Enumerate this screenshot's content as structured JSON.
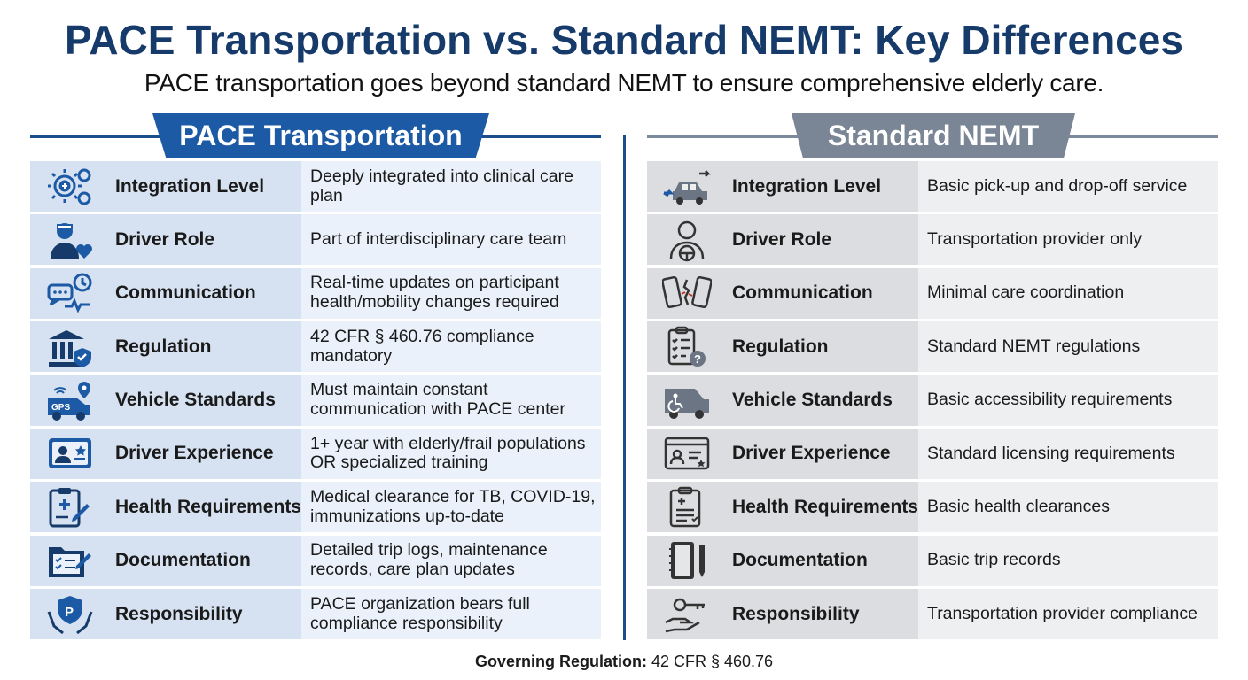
{
  "title": "PACE Transportation vs. Standard NEMT: Key Differences",
  "subtitle": "PACE transportation goes beyond standard NEMT to ensure comprehensive elderly care.",
  "colors": {
    "pace_blue": "#1d5aa5",
    "navy": "#163a6a",
    "nemt_gray": "#7a8696"
  },
  "pace": {
    "heading": "PACE Transportation",
    "rows": [
      {
        "icon": "gears-medical-icon",
        "label": "Integration Level",
        "desc": "Deeply integrated into clinical care plan"
      },
      {
        "icon": "nurse-heart-icon",
        "label": "Driver Role",
        "desc": "Part of interdisciplinary care team"
      },
      {
        "icon": "chat-clock-heartbeat-icon",
        "label": "Communication",
        "desc": "Real-time updates on participant health/mobility changes required"
      },
      {
        "icon": "government-shield-icon",
        "label": "Regulation",
        "desc": "42 CFR § 460.76 compliance mandatory"
      },
      {
        "icon": "gps-van-icon",
        "label": "Vehicle Standards",
        "desc": "Must maintain constant communication with PACE center"
      },
      {
        "icon": "id-badge-star-icon",
        "label": "Driver Experience",
        "desc": "1+ year with elderly/frail populations OR specialized training"
      },
      {
        "icon": "medical-clipboard-syringe-icon",
        "label": "Health Requirements",
        "desc": "Medical clearance for TB, COVID-19, immunizations up-to-date"
      },
      {
        "icon": "folder-checklist-pen-icon",
        "label": "Documentation",
        "desc": "Detailed trip logs, maintenance records, care plan updates"
      },
      {
        "icon": "hands-shield-icon",
        "label": "Responsibility",
        "desc": "PACE organization bears full compliance responsibility"
      }
    ],
    "gps_text": "GPS",
    "p_text": "P"
  },
  "nemt": {
    "heading": "Standard NEMT",
    "rows": [
      {
        "icon": "car-arrows-icon",
        "label": "Integration Level",
        "desc": "Basic pick-up and drop-off service"
      },
      {
        "icon": "driver-steering-icon",
        "label": "Driver Role",
        "desc": "Transportation provider only"
      },
      {
        "icon": "broken-phones-icon",
        "label": "Communication",
        "desc": "Minimal care coordination"
      },
      {
        "icon": "checklist-question-icon",
        "label": "Regulation",
        "desc": "Standard NEMT regulations"
      },
      {
        "icon": "accessible-van-icon",
        "label": "Vehicle Standards",
        "desc": "Basic accessibility requirements"
      },
      {
        "icon": "license-card-icon",
        "label": "Driver Experience",
        "desc": "Standard licensing requirements"
      },
      {
        "icon": "medical-form-icon",
        "label": "Health Requirements",
        "desc": "Basic health clearances"
      },
      {
        "icon": "notebook-pen-icon",
        "label": "Documentation",
        "desc": "Basic trip records"
      },
      {
        "icon": "hand-key-icon",
        "label": "Responsibility",
        "desc": "Transportation provider compliance"
      }
    ]
  },
  "footer": {
    "label": "Governing Regulation:",
    "value": "42 CFR § 460.76"
  }
}
